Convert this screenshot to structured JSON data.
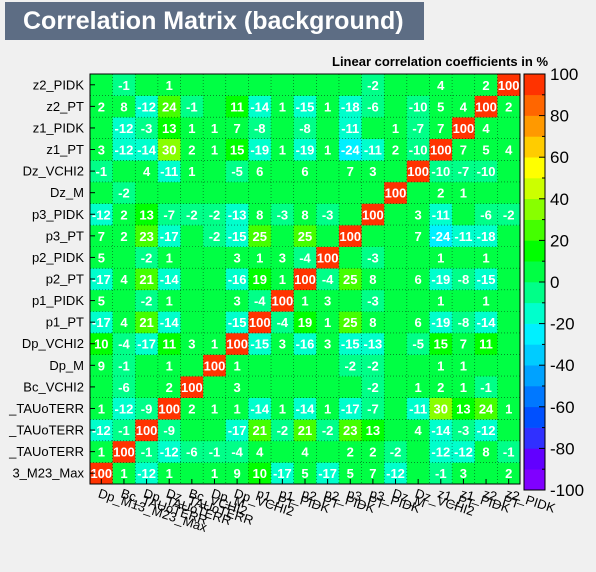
{
  "title": "Correlation Matrix (background)",
  "chart_data": {
    "type": "heatmap",
    "title": "Correlation Matrix (background)",
    "subtitle": "Linear correlation coefficients in %",
    "variables": [
      "Dp_M13_M23_Max",
      "Dz_TAUoTERR",
      "Dp_TAUoTERR",
      "Bc_TAUoTERR",
      "Bc_VCHI2",
      "Dp_M",
      "Dp_VCHI2",
      "p1_PT",
      "p1_PIDK",
      "p2_PT",
      "p2_PIDK",
      "p3_PT",
      "p3_PIDK",
      "Dz_M",
      "Dz_VCHI2",
      "z1_PT",
      "z1_PIDK",
      "z2_PT",
      "z2_PIDK"
    ],
    "x_labels": [
      "Dp_M13_M23_Max",
      "Bc_TAUoTERR",
      "Dp_TAUoTERR",
      "Dz_TAUoTERR",
      "Bc_VCHI2",
      "Dp_M",
      "Dp_VCHI2",
      "p1_PT",
      "p1_PIDK",
      "p2_PT",
      "p2_PIDK",
      "p3_PT",
      "p3_PIDK",
      "Dz_M",
      "Dz_VCHI2",
      "z1_PT",
      "z1_PIDK",
      "z2_PT",
      "z2_PIDK"
    ],
    "y_labels": [
      "Dp_M13_M23_Max",
      "Bc_TAUoTERR",
      "Dp_TAUoTERR",
      "Dz_TAUoTERR",
      "Bc_VCHI2",
      "Dp_M",
      "Dp_VCHI2",
      "p1_PT",
      "p1_PIDK",
      "p2_PT",
      "p2_PIDK",
      "p3_PT",
      "p3_PIDK",
      "Dz_M",
      "Dz_VCHI2",
      "z1_PT",
      "z1_PIDK",
      "z2_PT",
      "z2_PIDK"
    ],
    "x_labels_display": [
      "Dp_M13_M23_Max",
      "Bc_TAUoTERR",
      "Dp_TAUoTERR",
      "Dz_TAUoTERR",
      "Bc_VCHI2",
      "Dp_M",
      "Dp_VCHI2",
      "p1_PT",
      "p1_PIDK",
      "p2_PT",
      "p2_PIDK",
      "p3_PT",
      "p3_PIDK",
      "Dz_M",
      "Dz_VCHI2",
      "z1_PT",
      "z1_PIDK",
      "z2_PT",
      "z2_PIDK"
    ],
    "y_labels_display": [
      "3_M23_Max",
      "_TAUoTERR",
      "_TAUoTERR",
      "_TAUoTERR",
      "Bc_VCHI2",
      "Dp_M",
      "Dp_VCHI2",
      "p1_PT",
      "p1_PIDK",
      "p2_PT",
      "p2_PIDK",
      "p3_PT",
      "p3_PIDK",
      "Dz_M",
      "Dz_VCHI2",
      "z1_PT",
      "z1_PIDK",
      "z2_PT",
      "z2_PIDK"
    ],
    "matrix": [
      [
        100,
        1,
        -12,
        1,
        0,
        1,
        9,
        10,
        -17,
        5,
        -17,
        5,
        7,
        -12,
        0,
        -1,
        3,
        0,
        2
      ],
      [
        1,
        100,
        -1,
        -12,
        -6,
        -1,
        -4,
        4,
        0,
        4,
        0,
        2,
        2,
        -2,
        0,
        -12,
        -12,
        8,
        -1
      ],
      [
        -12,
        -1,
        100,
        -9,
        0,
        0,
        -17,
        21,
        -2,
        21,
        -2,
        23,
        13,
        0,
        4,
        -14,
        -3,
        -12,
        0
      ],
      [
        1,
        -12,
        -9,
        100,
        2,
        1,
        1,
        -14,
        1,
        -14,
        1,
        -17,
        -7,
        0,
        -11,
        30,
        13,
        24,
        1
      ],
      [
        0,
        -6,
        0,
        2,
        100,
        0,
        3,
        0,
        0,
        0,
        0,
        0,
        -2,
        0,
        1,
        2,
        1,
        -1,
        0
      ],
      [
        9,
        -1,
        0,
        1,
        0,
        100,
        1,
        0,
        0,
        0,
        0,
        -2,
        -2,
        0,
        0,
        1,
        1,
        0,
        0
      ],
      [
        10,
        -4,
        -17,
        11,
        3,
        1,
        100,
        -15,
        3,
        -16,
        3,
        -15,
        -13,
        0,
        -5,
        15,
        7,
        11,
        0
      ],
      [
        -17,
        4,
        21,
        -14,
        0,
        0,
        -15,
        100,
        -4,
        19,
        1,
        25,
        8,
        0,
        6,
        -19,
        -8,
        -14,
        0
      ],
      [
        5,
        0,
        -2,
        1,
        0,
        0,
        3,
        -4,
        100,
        1,
        3,
        0,
        -3,
        0,
        0,
        1,
        0,
        1,
        0
      ],
      [
        -17,
        4,
        21,
        -14,
        0,
        0,
        -16,
        19,
        1,
        100,
        -4,
        25,
        8,
        0,
        6,
        -19,
        -8,
        -15,
        0
      ],
      [
        5,
        0,
        -2,
        1,
        0,
        0,
        3,
        1,
        3,
        -4,
        100,
        0,
        -3,
        0,
        0,
        1,
        0,
        1,
        0
      ],
      [
        7,
        2,
        23,
        -17,
        0,
        -2,
        -15,
        25,
        0,
        25,
        0,
        100,
        0,
        0,
        7,
        -24,
        -11,
        -18,
        0
      ],
      [
        -12,
        2,
        13,
        -7,
        -2,
        -2,
        -13,
        8,
        -3,
        8,
        -3,
        0,
        100,
        0,
        3,
        -11,
        0,
        -6,
        -2
      ],
      [
        0,
        -2,
        0,
        0,
        0,
        0,
        0,
        0,
        0,
        0,
        0,
        0,
        0,
        100,
        0,
        2,
        1,
        0,
        0
      ],
      [
        -1,
        0,
        4,
        -11,
        1,
        0,
        -5,
        6,
        0,
        6,
        0,
        7,
        3,
        0,
        100,
        -10,
        -7,
        -10,
        0
      ],
      [
        3,
        -12,
        -14,
        30,
        2,
        1,
        15,
        -19,
        1,
        -19,
        1,
        -24,
        -11,
        2,
        -10,
        100,
        7,
        5,
        4
      ],
      [
        0,
        -12,
        -3,
        13,
        1,
        1,
        7,
        -8,
        0,
        -8,
        0,
        -11,
        0,
        1,
        -7,
        7,
        100,
        4,
        0
      ],
      [
        2,
        8,
        -12,
        24,
        -1,
        0,
        11,
        -14,
        1,
        -15,
        1,
        -18,
        -6,
        0,
        -10,
        5,
        4,
        100,
        2
      ],
      [
        0,
        -1,
        0,
        1,
        0,
        0,
        0,
        0,
        0,
        0,
        0,
        0,
        -2,
        0,
        0,
        4,
        0,
        2,
        100
      ]
    ],
    "zlim": [
      -100,
      100
    ],
    "colorbar_ticks": [
      100,
      80,
      60,
      40,
      20,
      0,
      -20,
      -40,
      -60,
      -80,
      -100
    ],
    "grid": true
  }
}
